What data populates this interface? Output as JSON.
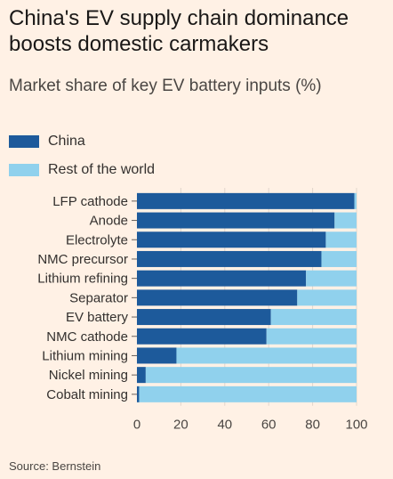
{
  "title": "China's EV supply chain dominance boosts domestic carmakers",
  "subtitle": "Market share of key EV battery inputs (%)",
  "source": "Source: Bernstein",
  "colors": {
    "china": "#1d5a9b",
    "rest_of_world": "#90d1ed",
    "background": "#fff1e5"
  },
  "legend": [
    {
      "label": "China",
      "color": "#1d5a9b"
    },
    {
      "label": "Rest of the world",
      "color": "#90d1ed"
    }
  ],
  "chart_data": {
    "type": "bar",
    "orientation": "horizontal",
    "stacked": true,
    "categories": [
      "LFP cathode",
      "Anode",
      "Electrolyte",
      "NMC precursor",
      "Lithium refining",
      "Separator",
      "EV battery",
      "NMC cathode",
      "Lithium mining",
      "Nickel mining",
      "Cobalt mining"
    ],
    "series": [
      {
        "name": "China",
        "values": [
          99,
          90,
          86,
          84,
          77,
          73,
          61,
          59,
          18,
          4,
          1
        ]
      },
      {
        "name": "Rest of the world",
        "values": [
          1,
          10,
          14,
          16,
          23,
          27,
          39,
          41,
          82,
          96,
          99
        ]
      }
    ],
    "xlim": [
      0,
      100
    ],
    "xticks": [
      0,
      20,
      40,
      60,
      80,
      100
    ],
    "grid": true,
    "legend_position": "top-left"
  }
}
